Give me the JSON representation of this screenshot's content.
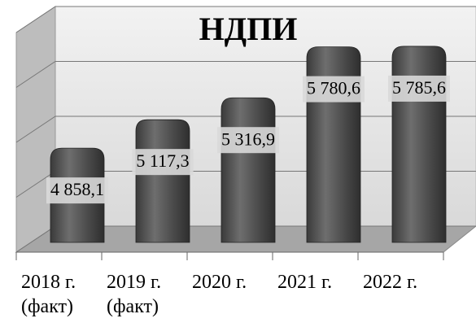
{
  "chart_data": {
    "type": "bar3d",
    "title": "НДПИ",
    "categories": [
      "2018 г. (факт)",
      "2019 г. (факт)",
      "2020 г.",
      "2021 г.",
      "2022 г."
    ],
    "values": [
      4858.1,
      5117.3,
      5316.9,
      5780.6,
      5785.6
    ],
    "value_labels": [
      "4 858,1",
      "5 117,3",
      "5 316,9",
      "5 780,6",
      "5 785,6"
    ],
    "color": "#555555",
    "ylim": [
      4000,
      6000
    ],
    "yticks": [
      4000,
      4500,
      5000,
      5500,
      6000
    ],
    "grid": true
  }
}
